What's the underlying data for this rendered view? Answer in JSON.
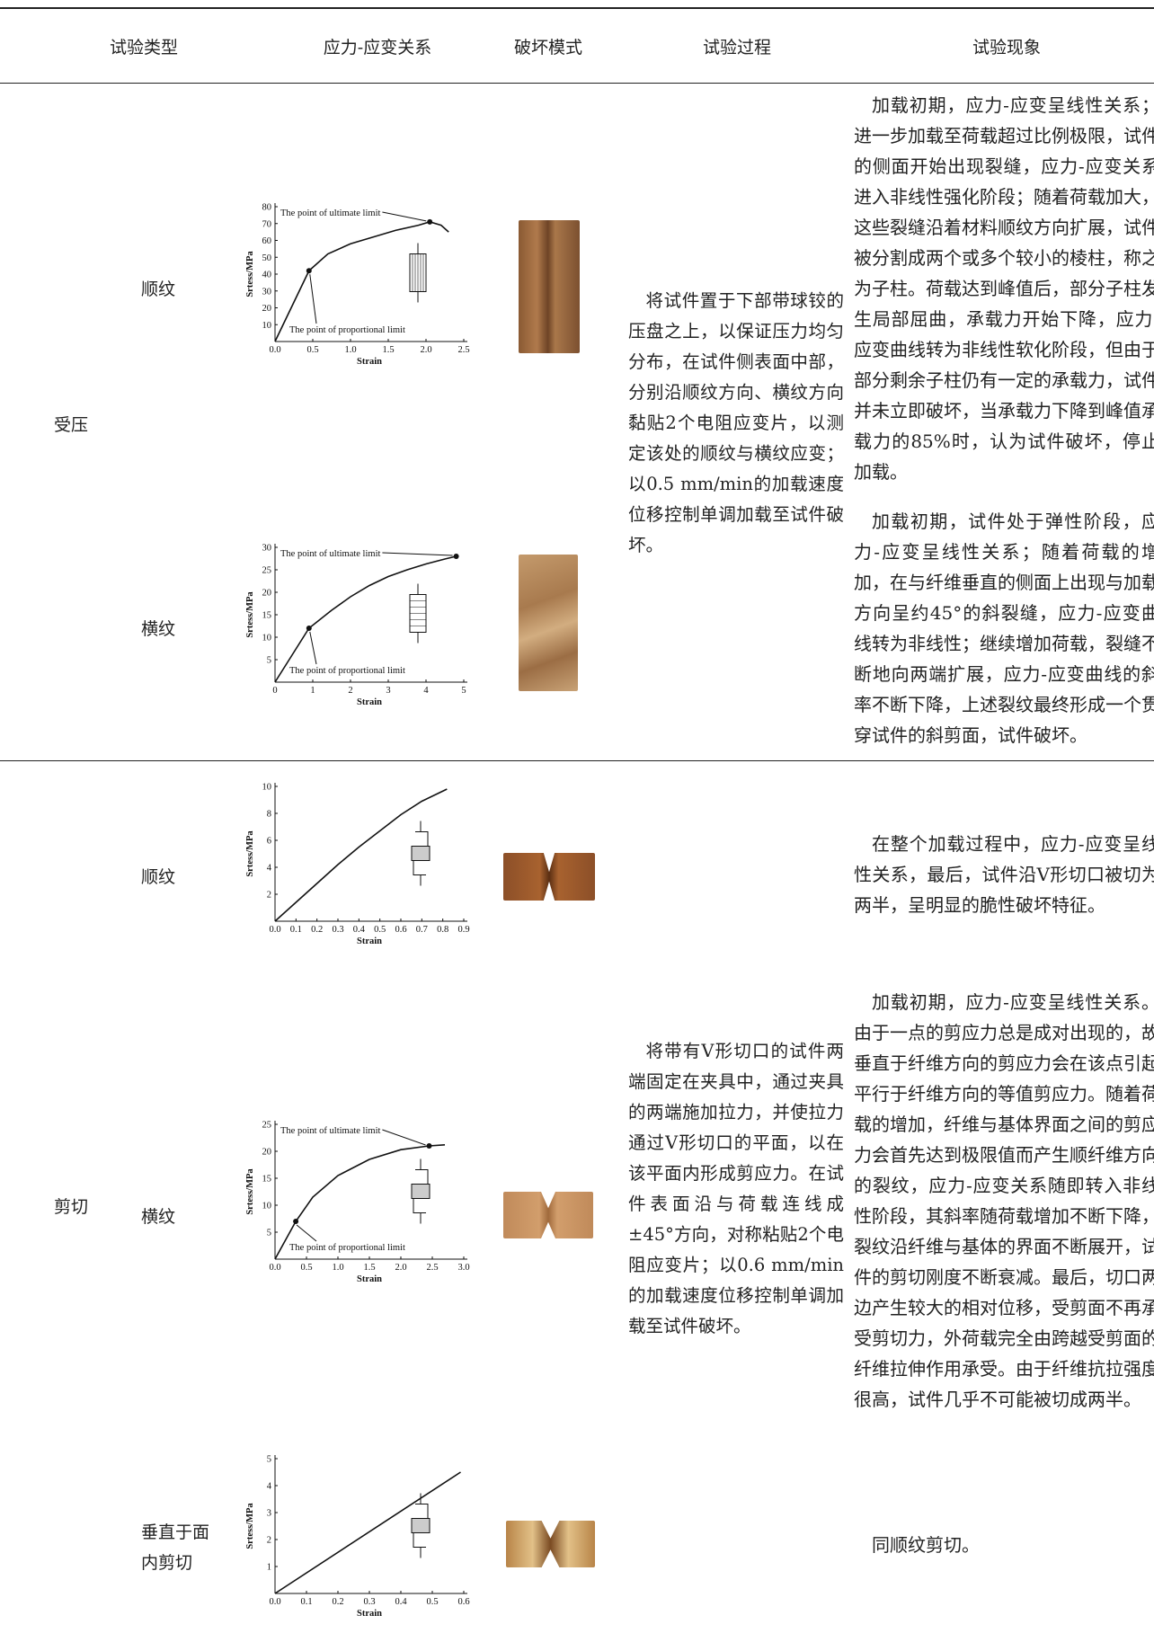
{
  "table": {
    "headers": [
      "试验类型",
      "应力-应变关系",
      "破坏模式",
      "试验过程",
      "试验现象"
    ],
    "sections": [
      {
        "type": "受压",
        "process": "将试件置于下部带球铰的压盘之上，以保证压力均匀分布，在试件侧表面中部，分别沿顺纹方向、横纹方向黏贴2个电阻应变片，以测定该处的顺纹与横纹应变；以0.5 mm/min的加载速度位移控制单调加载至试件破坏。",
        "rows": [
          {
            "subtype": "顺纹",
            "chart": {
              "type": "line",
              "xlabel": "Strain",
              "ylabel": "Srtess/MPa",
              "xlim": [
                0,
                2.5
              ],
              "ylim": [
                0,
                80
              ],
              "xticks": [
                {
                  "value": 0,
                  "label": "0.0"
                },
                0.5,
                {
                  "value": 1,
                  "label": "1.0"
                },
                1.5,
                {
                  "value": 2,
                  "label": "2.0"
                },
                2.5
              ],
              "yticks": [
                10,
                20,
                30,
                40,
                50,
                60,
                70,
                80
              ],
              "x": [
                0,
                0.45,
                0.7,
                1.0,
                1.3,
                1.6,
                1.9,
                2.05,
                2.2,
                2.3
              ],
              "y": [
                0,
                42,
                52,
                58,
                62,
                66,
                69,
                71,
                69,
                65
              ],
              "annotations": [
                {
                  "text": "The point of ultimate limit",
                  "x": 2.05,
                  "y": 71
                },
                {
                  "text": "The point of proportional limit",
                  "x": 0.45,
                  "y": 42
                }
              ]
            },
            "phenomenon": "加载初期，应力-应变呈线性关系；进一步加载至荷载超过比例极限，试件的侧面开始出现裂缝，应力-应变关系进入非线性强化阶段；随着荷载加大，这些裂缝沿着材料顺纹方向扩展，试件被分割成两个或多个较小的棱柱，称之为子柱。荷载达到峰值后，部分子柱发生局部屈曲，承载力开始下降，应力-应变曲线转为非线性软化阶段，但由于部分剩余子柱仍有一定的承载力，试件并未立即破坏，当承载力下降到峰值承载力的85%时，认为试件破坏，停止加载。"
          },
          {
            "subtype": "横纹",
            "chart": {
              "type": "line",
              "xlabel": "Strain",
              "ylabel": "Srtess/MPa",
              "xlim": [
                0,
                5
              ],
              "ylim": [
                0,
                30
              ],
              "xticks": [
                0,
                1,
                2,
                3,
                4,
                5
              ],
              "yticks": [
                5,
                10,
                15,
                20,
                25,
                30
              ],
              "x": [
                0,
                0.9,
                1.5,
                2,
                2.5,
                3,
                3.5,
                4,
                4.5,
                4.8
              ],
              "y": [
                0,
                12,
                16,
                19,
                21.5,
                23.5,
                25,
                26.3,
                27.4,
                28
              ],
              "annotations": [
                {
                  "text": "The point of ultimate limit",
                  "x": 4.8,
                  "y": 28
                },
                {
                  "text": "The point of proportional limit",
                  "x": 0.9,
                  "y": 12
                }
              ]
            },
            "phenomenon": "加载初期，试件处于弹性阶段，应力-应变呈线性关系；随着荷载的增加，在与纤维垂直的侧面上出现与加载方向呈约45°的斜裂缝，应力-应变曲线转为非线性；继续增加荷载，裂缝不断地向两端扩展，应力-应变曲线的斜率不断下降，上述裂纹最终形成一个贯穿试件的斜剪面，试件破坏。"
          }
        ]
      },
      {
        "type": "剪切",
        "process": "将带有V形切口的试件两端固定在夹具中，通过夹具的两端施加拉力，并使拉力通过V形切口的平面，以在该平面内形成剪应力。在试件表面沿与荷载连线成±45°方向，对称粘贴2个电阻应变片；以0.6 mm/min的加载速度位移控制单调加载至试件破坏。",
        "rows": [
          {
            "subtype": "顺纹",
            "chart": {
              "type": "line",
              "xlabel": "Strain",
              "ylabel": "Srtess/MPa",
              "xlim": [
                0,
                0.9
              ],
              "ylim": [
                0,
                10
              ],
              "xticks": [
                {
                  "value": 0,
                  "label": "0.0"
                },
                0.1,
                0.2,
                0.3,
                0.4,
                0.5,
                0.6,
                0.7,
                0.8,
                0.9
              ],
              "yticks": [
                2,
                4,
                6,
                8,
                10
              ],
              "x": [
                0,
                0.1,
                0.2,
                0.3,
                0.4,
                0.5,
                0.6,
                0.7,
                0.78,
                0.82
              ],
              "y": [
                0,
                1.4,
                2.8,
                4.2,
                5.5,
                6.7,
                7.9,
                8.9,
                9.5,
                9.8
              ],
              "annotations": []
            },
            "phenomenon": "在整个加载过程中，应力-应变呈线性关系，最后，试件沿V形切口被切为两半，呈明显的脆性破坏特征。"
          },
          {
            "subtype": "横纹",
            "chart": {
              "type": "line",
              "xlabel": "Strain",
              "ylabel": "Srtess/MPa",
              "xlim": [
                0,
                3
              ],
              "ylim": [
                0,
                25
              ],
              "xticks": [
                {
                  "value": 0,
                  "label": "0.0"
                },
                0.5,
                {
                  "value": 1,
                  "label": "1.0"
                },
                1.5,
                {
                  "value": 2,
                  "label": "2.0"
                },
                2.5,
                {
                  "value": 3,
                  "label": "3.0"
                }
              ],
              "yticks": [
                5,
                10,
                15,
                20,
                25
              ],
              "x": [
                0,
                0.33,
                0.6,
                1,
                1.5,
                2,
                2.45,
                2.7
              ],
              "y": [
                0,
                7,
                11.5,
                15.5,
                18.5,
                20.3,
                21,
                21.2
              ],
              "annotations": [
                {
                  "text": "The point of ultimate limit",
                  "x": 2.45,
                  "y": 21
                },
                {
                  "text": "The point of proportional limit",
                  "x": 0.33,
                  "y": 7
                }
              ]
            },
            "phenomenon": "加载初期，应力-应变呈线性关系。由于一点的剪应力总是成对出现的，故垂直于纤维方向的剪应力会在该点引起平行于纤维方向的等值剪应力。随着荷载的增加，纤维与基体界面之间的剪应力会首先达到极限值而产生顺纤维方向的裂纹，应力-应变关系随即转入非线性阶段，其斜率随荷载增加不断下降，裂纹沿纤维与基体的界面不断展开，试件的剪切刚度不断衰减。最后，切口两边产生较大的相对位移，受剪面不再承受剪切力，外荷载完全由跨越受剪面的纤维拉伸作用承受。由于纤维抗拉强度很高，试件几乎不可能被切成两半。"
          },
          {
            "subtype": "垂直于面内剪切",
            "chart": {
              "type": "line",
              "xlabel": "Strain",
              "ylabel": "Srtess/MPa",
              "xlim": [
                0,
                0.6
              ],
              "ylim": [
                0,
                5
              ],
              "xticks": [
                {
                  "value": 0,
                  "label": "0.0"
                },
                0.1,
                0.2,
                0.3,
                0.4,
                0.5,
                0.6
              ],
              "yticks": [
                1,
                2,
                3,
                4,
                5
              ],
              "x": [
                0,
                0.59
              ],
              "y": [
                0,
                4.5
              ],
              "annotations": []
            },
            "phenomenon": "同顺纹剪切。"
          }
        ]
      }
    ]
  }
}
